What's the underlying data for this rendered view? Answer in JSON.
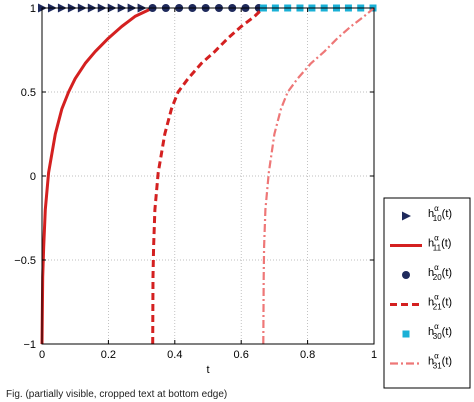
{
  "chart_data": {
    "type": "line",
    "title": "",
    "xlabel": "t",
    "ylabel": "",
    "xlim": [
      0,
      1
    ],
    "ylim": [
      -1,
      1
    ],
    "xticks": [
      0,
      0.2,
      0.4,
      0.6,
      0.8,
      1
    ],
    "yticks": [
      -1,
      -0.5,
      0,
      0.5,
      1
    ],
    "xtick_labels": [
      "0",
      "0.2",
      "0.4",
      "0.6",
      "0.8",
      "1"
    ],
    "ytick_labels": [
      "−1",
      "−0.5",
      "0",
      "0.5",
      "1"
    ],
    "grid": true,
    "legend_position": "right, outside plot",
    "series": [
      {
        "name": "h10α(t)",
        "label": {
          "base": "h",
          "sup": "α",
          "sub": "10",
          "arg": "(t)"
        },
        "style": "triangle-markers",
        "color": "#1f2a5c",
        "x": [
          0,
          0.03,
          0.06,
          0.09,
          0.12,
          0.15,
          0.18,
          0.21,
          0.24,
          0.27,
          0.3
        ],
        "y": [
          1,
          1,
          1,
          1,
          1,
          1,
          1,
          1,
          1,
          1,
          1
        ]
      },
      {
        "name": "h11α(t)",
        "label": {
          "base": "h",
          "sup": "α",
          "sub": "11",
          "arg": "(t)"
        },
        "style": "solid",
        "color": "#d42020",
        "x": [
          0,
          0.002,
          0.005,
          0.01,
          0.02,
          0.04,
          0.06,
          0.08,
          0.1,
          0.13,
          0.16,
          0.2,
          0.24,
          0.28,
          0.3333
        ],
        "y": [
          -1,
          -0.6,
          -0.42,
          -0.2,
          0.02,
          0.25,
          0.4,
          0.5,
          0.58,
          0.67,
          0.74,
          0.82,
          0.89,
          0.95,
          1
        ]
      },
      {
        "name": "h20α(t)",
        "label": {
          "base": "h",
          "sup": "α",
          "sub": "20",
          "arg": "(t)"
        },
        "style": "circle-markers",
        "color": "#1f2a5c",
        "x": [
          0.333,
          0.373,
          0.413,
          0.453,
          0.493,
          0.533,
          0.573,
          0.613,
          0.653
        ],
        "y": [
          1,
          1,
          1,
          1,
          1,
          1,
          1,
          1,
          1
        ]
      },
      {
        "name": "h21α(t)",
        "label": {
          "base": "h",
          "sup": "α",
          "sub": "21",
          "arg": "(t)"
        },
        "style": "dashed",
        "color": "#d42020",
        "x": [
          0.3333,
          0.3343,
          0.336,
          0.34,
          0.35,
          0.37,
          0.39,
          0.41,
          0.44,
          0.48,
          0.52,
          0.56,
          0.6,
          0.64,
          0.6667
        ],
        "y": [
          -1,
          -0.6,
          -0.42,
          -0.2,
          0.02,
          0.25,
          0.4,
          0.5,
          0.58,
          0.67,
          0.74,
          0.82,
          0.89,
          0.95,
          1
        ]
      },
      {
        "name": "h30α(t)",
        "label": {
          "base": "h",
          "sup": "α",
          "sub": "30",
          "arg": "(t)"
        },
        "style": "square-markers",
        "color": "#1ab0d6",
        "x": [
          0.667,
          0.703,
          0.74,
          0.777,
          0.813,
          0.85,
          0.887,
          0.923,
          0.96,
          0.997
        ],
        "y": [
          1,
          1,
          1,
          1,
          1,
          1,
          1,
          1,
          1,
          1
        ]
      },
      {
        "name": "h31α(t)",
        "label": {
          "base": "h",
          "sup": "α",
          "sub": "31",
          "arg": "(t)"
        },
        "style": "dashdot",
        "color": "#ee7777",
        "x": [
          0.6667,
          0.6677,
          0.669,
          0.673,
          0.683,
          0.7,
          0.72,
          0.74,
          0.77,
          0.81,
          0.85,
          0.89,
          0.93,
          0.97,
          1
        ],
        "y": [
          -1,
          -0.6,
          -0.42,
          -0.2,
          0.02,
          0.25,
          0.4,
          0.5,
          0.58,
          0.67,
          0.74,
          0.82,
          0.89,
          0.95,
          1
        ]
      }
    ]
  },
  "caption": "Fig. (partially visible, cropped text at bottom edge)"
}
